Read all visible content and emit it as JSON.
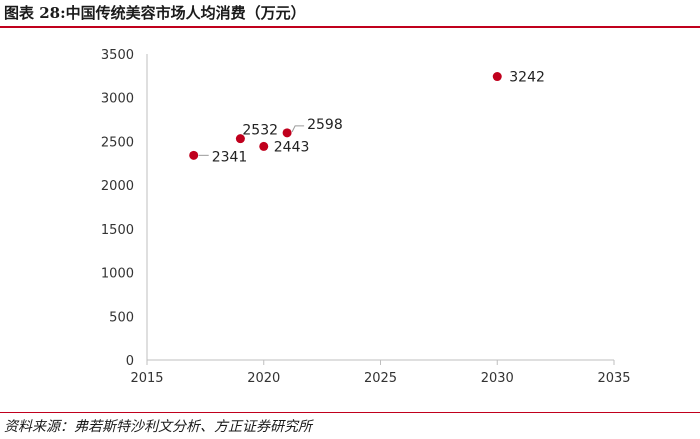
{
  "title": "图表 28:中国传统美容市场人均消费（万元）",
  "source": "资料来源：弗若斯特沙利文分析、方正证券研究所",
  "chart_data": {
    "type": "scatter",
    "title": "图表 28:中国传统美容市场人均消费（万元）",
    "xlabel": "",
    "ylabel": "",
    "xlim": [
      2015,
      2035
    ],
    "ylim": [
      0,
      3500
    ],
    "xticks": [
      2015,
      2020,
      2025,
      2030,
      2035
    ],
    "yticks": [
      0,
      500,
      1000,
      1500,
      2000,
      2500,
      3000,
      3500
    ],
    "grid": false,
    "marker_color": "#c0001d",
    "points": [
      {
        "x": 2017,
        "y": 2341,
        "label": "2341"
      },
      {
        "x": 2019,
        "y": 2532,
        "label": "2532"
      },
      {
        "x": 2020,
        "y": 2443,
        "label": "2443"
      },
      {
        "x": 2021,
        "y": 2598,
        "label": "2598"
      },
      {
        "x": 2030,
        "y": 3242,
        "label": "3242"
      }
    ]
  }
}
